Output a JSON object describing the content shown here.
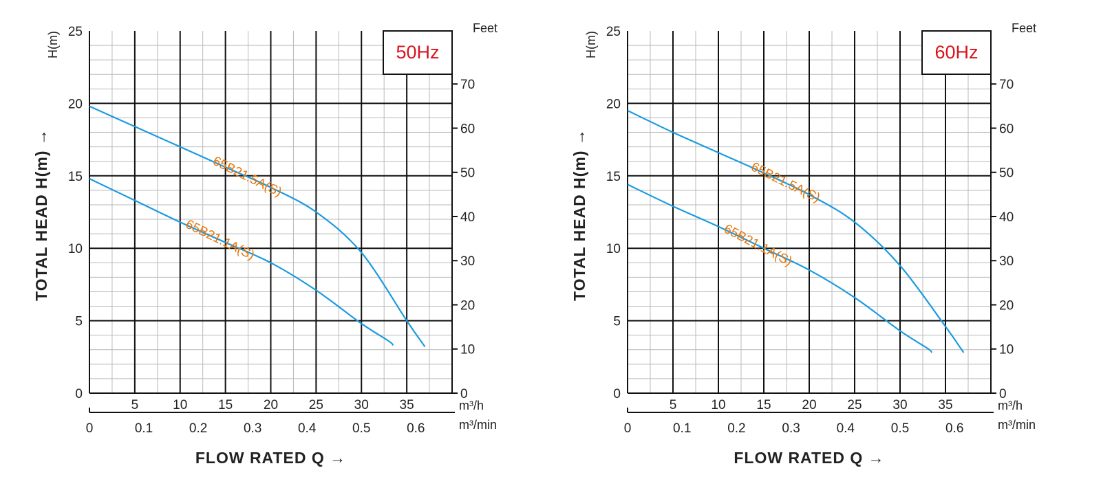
{
  "chart_data": [
    {
      "type": "line",
      "frequency_label": "50Hz",
      "ylabel": "TOTAL HEAD H(m) →",
      "yunit": "H(m)",
      "y2unit": "Feet",
      "xlabel": "FLOW RATED Q →",
      "xunit_primary": "m³/h",
      "xunit_secondary": "m³/min",
      "xlim": [
        0,
        40
      ],
      "ylim": [
        0,
        25
      ],
      "y_ticks": [
        "0",
        "5",
        "10",
        "15",
        "20",
        "25"
      ],
      "y2_ticks": [
        "0",
        "10",
        "20",
        "30",
        "40",
        "50",
        "60",
        "70"
      ],
      "x_ticks_m3h": [
        "5",
        "10",
        "15",
        "20",
        "25",
        "30",
        "35"
      ],
      "x_ticks_m3min": [
        "0",
        "0.1",
        "0.2",
        "0.3",
        "0.4",
        "0.5",
        "0.6"
      ],
      "grid": true,
      "series": [
        {
          "name": "65B21.5A(S)",
          "x": [
            0,
            5,
            10,
            15,
            20,
            25,
            30,
            35,
            37
          ],
          "y": [
            19.8,
            18.4,
            17.0,
            15.6,
            14.2,
            12.5,
            9.7,
            5.0,
            3.2
          ]
        },
        {
          "name": "65B21.1A(S)",
          "x": [
            0,
            5,
            10,
            15,
            20,
            25,
            30,
            33,
            33.5
          ],
          "y": [
            14.8,
            13.3,
            11.8,
            10.4,
            9.0,
            7.1,
            4.8,
            3.6,
            3.3
          ]
        }
      ]
    },
    {
      "type": "line",
      "frequency_label": "60Hz",
      "ylabel": "TOTAL HEAD H(m) →",
      "yunit": "H(m)",
      "y2unit": "Feet",
      "xlabel": "FLOW RATED Q →",
      "xunit_primary": "m³/h",
      "xunit_secondary": "m³/min",
      "xlim": [
        0,
        40
      ],
      "ylim": [
        0,
        25
      ],
      "y_ticks": [
        "0",
        "5",
        "10",
        "15",
        "20",
        "25"
      ],
      "y2_ticks": [
        "0",
        "10",
        "20",
        "30",
        "40",
        "50",
        "60",
        "70"
      ],
      "x_ticks_m3h": [
        "5",
        "10",
        "15",
        "20",
        "25",
        "30",
        "35"
      ],
      "x_ticks_m3min": [
        "0",
        "0.1",
        "0.2",
        "0.3",
        "0.4",
        "0.5",
        "0.6"
      ],
      "grid": true,
      "series": [
        {
          "name": "65B21.5A(S)",
          "x": [
            0,
            5,
            10,
            15,
            20,
            25,
            30,
            35,
            37
          ],
          "y": [
            19.5,
            18.0,
            16.6,
            15.2,
            13.7,
            11.8,
            8.8,
            4.6,
            2.8
          ]
        },
        {
          "name": "65B21.1A(S)",
          "x": [
            0,
            5,
            10,
            15,
            20,
            25,
            30,
            33,
            33.5
          ],
          "y": [
            14.4,
            12.9,
            11.5,
            10.0,
            8.5,
            6.6,
            4.3,
            3.1,
            2.8
          ]
        }
      ]
    }
  ],
  "colors": {
    "curve": "#1b9be0",
    "curve_label": "#e8760a",
    "frequency": "#d7141d",
    "grid_major": "#111111",
    "grid_minor": "#b9b9b9"
  }
}
